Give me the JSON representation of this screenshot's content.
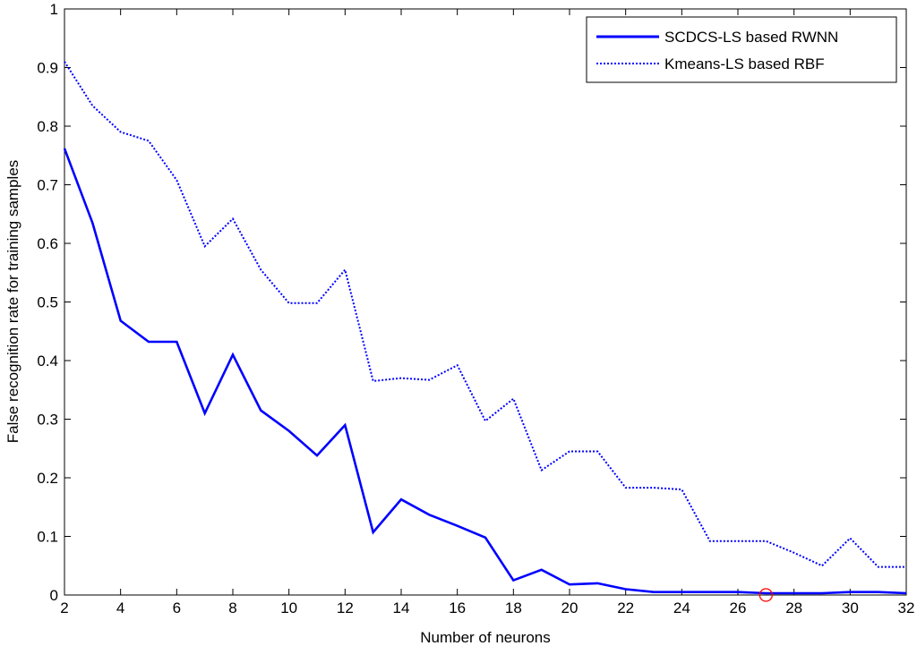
{
  "chart_data": {
    "type": "line",
    "title": "",
    "xlabel": "Number of neurons",
    "ylabel": "False recognition rate for training samples",
    "xlim": [
      2,
      32
    ],
    "ylim": [
      0,
      1
    ],
    "xticks": [
      2,
      4,
      6,
      8,
      10,
      12,
      14,
      16,
      18,
      20,
      22,
      24,
      26,
      28,
      30,
      32
    ],
    "yticks": [
      0,
      0.1,
      0.2,
      0.3,
      0.4,
      0.5,
      0.6,
      0.7,
      0.8,
      0.9,
      1
    ],
    "ytick_labels": [
      "0",
      "0.1",
      "0.2",
      "0.3",
      "0.4",
      "0.5",
      "0.6",
      "0.7",
      "0.8",
      "0.9",
      "1"
    ],
    "grid": false,
    "legend_position": "top-right",
    "x": [
      2,
      3,
      4,
      5,
      6,
      7,
      8,
      9,
      10,
      11,
      12,
      13,
      14,
      15,
      16,
      17,
      18,
      19,
      20,
      21,
      22,
      23,
      24,
      25,
      26,
      27,
      28,
      29,
      30,
      31,
      32
    ],
    "series": [
      {
        "name": "SCDCS-LS based RWNN",
        "style": "solid",
        "color": "#0000ff",
        "values": [
          0.762,
          0.635,
          0.468,
          0.432,
          0.432,
          0.31,
          0.41,
          0.315,
          0.28,
          0.238,
          0.29,
          0.107,
          0.163,
          0.137,
          0.118,
          0.098,
          0.025,
          0.043,
          0.018,
          0.02,
          0.01,
          0.005,
          0.005,
          0.005,
          0.005,
          0.003,
          0.003,
          0.003,
          0.005,
          0.005,
          0.003
        ]
      },
      {
        "name": "Kmeans-LS based RBF",
        "style": "dotted",
        "color": "#0000ff",
        "values": [
          0.91,
          0.835,
          0.79,
          0.775,
          0.708,
          0.595,
          0.642,
          0.555,
          0.498,
          0.498,
          0.555,
          0.365,
          0.37,
          0.367,
          0.392,
          0.297,
          0.335,
          0.213,
          0.245,
          0.245,
          0.183,
          0.183,
          0.18,
          0.092,
          0.092,
          0.092,
          0.072,
          0.05,
          0.097,
          0.048,
          0.048
        ]
      }
    ],
    "marker": {
      "x": 27,
      "y": 0,
      "shape": "circle",
      "color": "#ff0000"
    }
  }
}
